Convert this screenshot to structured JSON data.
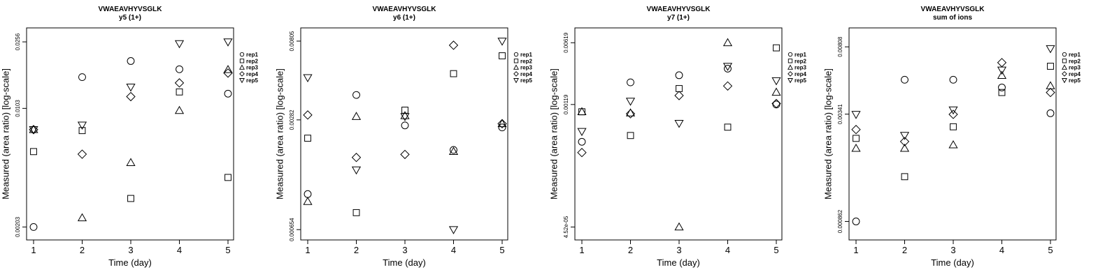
{
  "panels": [
    {
      "title": "VWAEAVHYVSGLK",
      "subtitle": "y5 (1+)",
      "chart_data": {
        "type": "scatter",
        "xlabel": "Time (day)",
        "ylabel": "Measured (area ratio) [log-scale]",
        "yscale": "log",
        "x_ticks": [
          1,
          2,
          3,
          4,
          5
        ],
        "y_ticks": [
          "0.00203",
          "0.0103",
          "0.0256"
        ],
        "y_tick_values": [
          0.00203,
          0.0103,
          0.0256
        ],
        "ylim": [
          0.0017,
          0.031
        ],
        "grid": false,
        "legend": "right",
        "series": [
          {
            "name": "rep1",
            "marker": "circle",
            "values": [
              0.00203,
              0.0158,
              0.0197,
              0.0176,
              0.0126
            ]
          },
          {
            "name": "rep2",
            "marker": "square",
            "values": [
              0.0057,
              0.0076,
              0.003,
              0.0129,
              0.004
            ]
          },
          {
            "name": "rep3",
            "marker": "triangle-up",
            "values": [
              0.0077,
              0.0023,
              0.0049,
              0.01,
              0.0175
            ]
          },
          {
            "name": "rep4",
            "marker": "diamond",
            "values": [
              0.0077,
              0.0055,
              0.0121,
              0.0146,
              0.0167
            ]
          },
          {
            "name": "rep5",
            "marker": "triangle-down",
            "values": [
              0.0077,
              0.0082,
              0.0138,
              0.025,
              0.0256
            ]
          }
        ]
      }
    },
    {
      "title": "VWAEAVHYVSGLK",
      "subtitle": "y6 (1+)",
      "chart_data": {
        "type": "scatter",
        "xlabel": "Time (day)",
        "ylabel": "Measured (area ratio) [log-scale]",
        "yscale": "log",
        "x_ticks": [
          1,
          2,
          3,
          4,
          5
        ],
        "y_ticks": [
          "0.000654",
          "0.00282",
          "0.00805"
        ],
        "y_tick_values": [
          0.000654,
          0.00282,
          0.00805
        ],
        "ylim": [
          0.00057,
          0.0096
        ],
        "grid": false,
        "legend": "right",
        "series": [
          {
            "name": "rep1",
            "marker": "circle",
            "values": [
              0.00105,
              0.00393,
              0.00262,
              0.00189,
              0.00255
            ]
          },
          {
            "name": "rep2",
            "marker": "square",
            "values": [
              0.00221,
              0.00082,
              0.00321,
              0.00522,
              0.00662
            ]
          },
          {
            "name": "rep3",
            "marker": "triangle-up",
            "values": [
              0.00095,
              0.00295,
              0.00298,
              0.00185,
              0.00268
            ]
          },
          {
            "name": "rep4",
            "marker": "diamond",
            "values": [
              0.00301,
              0.00171,
              0.00178,
              0.00762,
              0.00268
            ]
          },
          {
            "name": "rep5",
            "marker": "triangle-down",
            "values": [
              0.00495,
              0.00145,
              0.00295,
              0.000654,
              0.00805
            ]
          }
        ]
      }
    },
    {
      "title": "VWAEAVHYVSGLK",
      "subtitle": "y7 (1+)",
      "chart_data": {
        "type": "scatter",
        "xlabel": "Time (day)",
        "ylabel": "Measured (area ratio) [log-scale]",
        "yscale": "log",
        "x_ticks": [
          1,
          2,
          3,
          4,
          5
        ],
        "y_ticks": [
          "4.52e-05",
          "0.00119",
          "0.00619"
        ],
        "y_tick_values": [
          4.52e-05,
          0.00119,
          0.00619
        ],
        "ylim": [
          3.2e-05,
          0.0092
        ],
        "grid": false,
        "legend": "right",
        "series": [
          {
            "name": "rep1",
            "marker": "circle",
            "values": [
              0.00044,
              0.00215,
              0.0026,
              0.0031,
              0.00119
            ]
          },
          {
            "name": "rep2",
            "marker": "square",
            "values": [
              0.00098,
              0.00052,
              0.00182,
              0.00065,
              0.0054
            ]
          },
          {
            "name": "rep3",
            "marker": "triangle-up",
            "values": [
              0.00098,
              0.00095,
              4.52e-05,
              0.00619,
              0.00165
            ]
          },
          {
            "name": "rep4",
            "marker": "diamond",
            "values": [
              0.00033,
              0.00093,
              0.00151,
              0.00195,
              0.00122
            ]
          },
          {
            "name": "rep5",
            "marker": "triangle-down",
            "values": [
              0.00058,
              0.0013,
              0.00072,
              0.0033,
              0.00225
            ]
          }
        ]
      }
    },
    {
      "title": "VWAEAVHYVSGLK",
      "subtitle": "sum of ions",
      "chart_data": {
        "type": "scatter",
        "xlabel": "Time (day)",
        "ylabel": "Measured (area ratio) [log-scale]",
        "yscale": "log",
        "x_ticks": [
          1,
          2,
          3,
          4,
          5
        ],
        "y_ticks": [
          "0.000862",
          "0.00341",
          "0.00808"
        ],
        "y_tick_values": [
          0.000862,
          0.00341,
          0.00808
        ],
        "ylim": [
          0.00068,
          0.0103
        ],
        "grid": false,
        "legend": "right",
        "series": [
          {
            "name": "rep1",
            "marker": "circle",
            "values": [
              0.000862,
              0.0053,
              0.0053,
              0.0048,
              0.00345
            ]
          },
          {
            "name": "rep2",
            "marker": "square",
            "values": [
              0.0025,
              0.00153,
              0.0029,
              0.0045,
              0.0063
            ]
          },
          {
            "name": "rep3",
            "marker": "triangle-up",
            "values": [
              0.0022,
              0.0022,
              0.0023,
              0.0056,
              0.0049
            ]
          },
          {
            "name": "rep4",
            "marker": "diamond",
            "values": [
              0.0028,
              0.0024,
              0.0034,
              0.0066,
              0.0045
            ]
          },
          {
            "name": "rep5",
            "marker": "triangle-down",
            "values": [
              0.0034,
              0.0026,
              0.0036,
              0.006,
              0.0079
            ]
          }
        ]
      }
    }
  ]
}
